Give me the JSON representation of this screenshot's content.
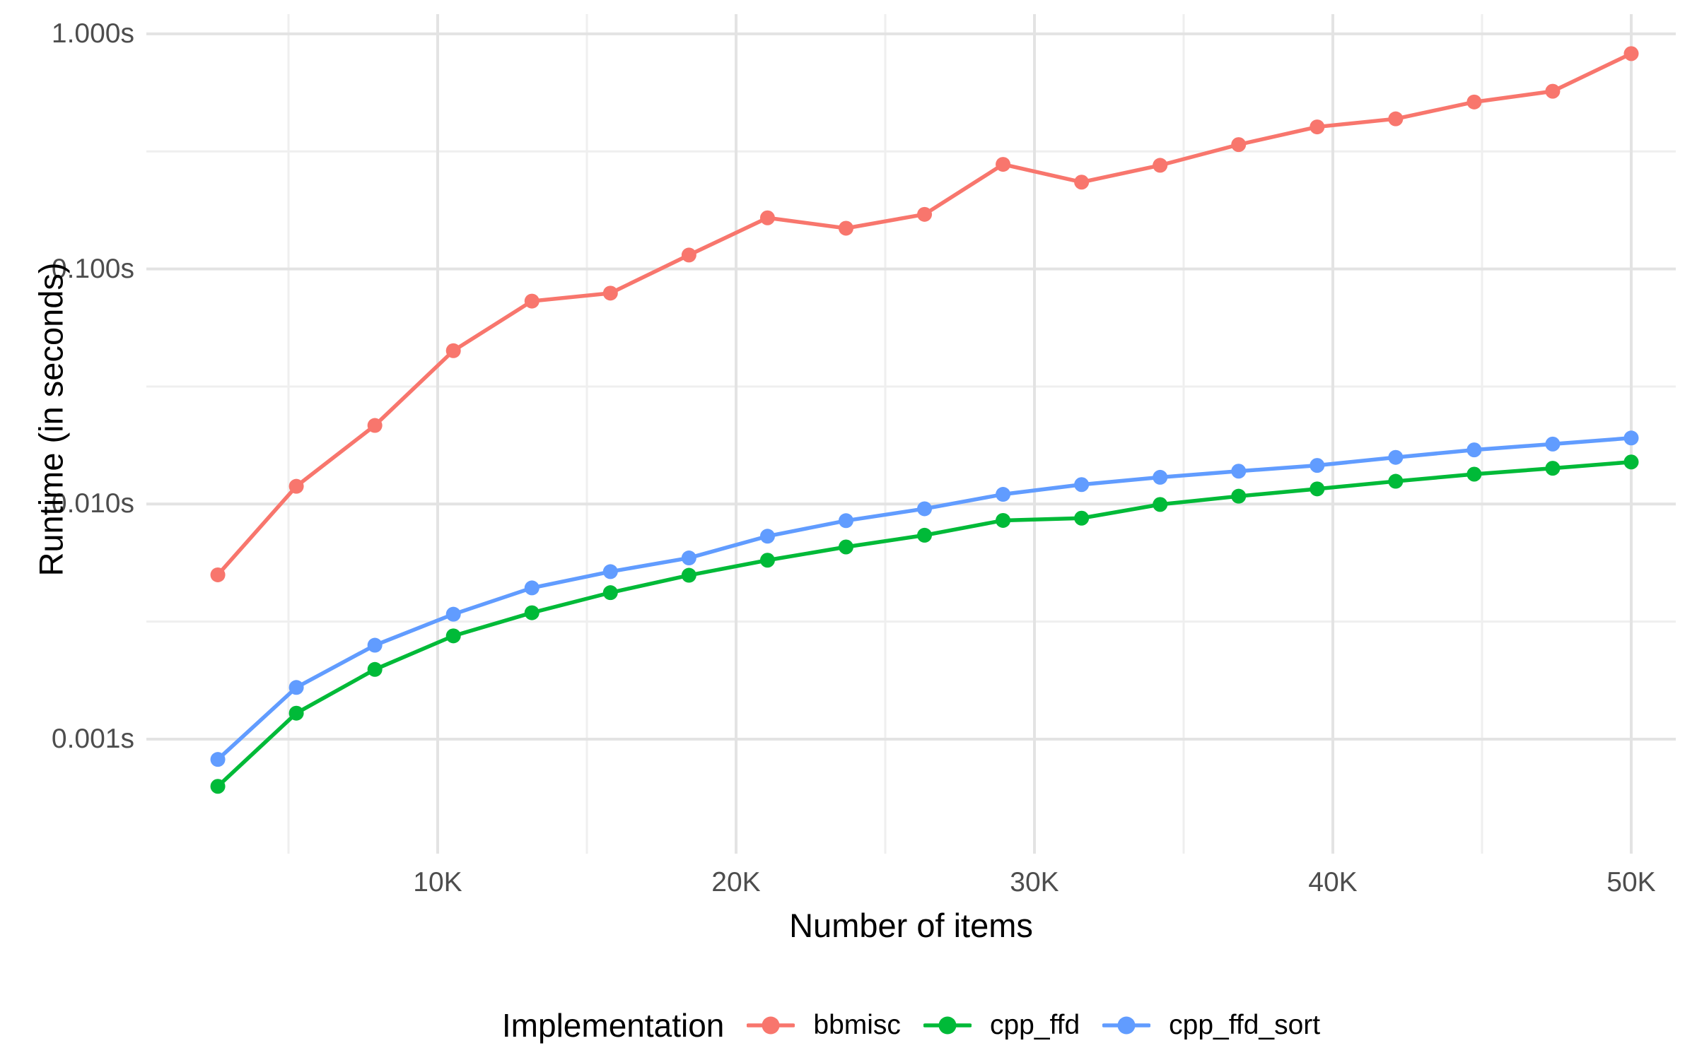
{
  "chart_data": {
    "type": "line",
    "title": "",
    "xlabel": "Number of items",
    "ylabel": "Runtime (in seconds)",
    "x_axis": {
      "scale": "linear",
      "range": [
        1100,
        51300
      ],
      "major_ticks": [
        {
          "value": 10000,
          "label": "10K"
        },
        {
          "value": 20000,
          "label": "20K"
        },
        {
          "value": 30000,
          "label": "30K"
        },
        {
          "value": 40000,
          "label": "40K"
        },
        {
          "value": 50000,
          "label": "50K"
        }
      ],
      "minor_ticks": [
        5000,
        15000,
        25000,
        35000,
        45000
      ]
    },
    "y_axis": {
      "scale": "log10",
      "range": [
        0.00045,
        1.25
      ],
      "major_ticks": [
        {
          "value": 1.0,
          "label": "1.000s"
        },
        {
          "value": 0.1,
          "label": "0.100s"
        },
        {
          "value": 0.01,
          "label": "0.010s"
        },
        {
          "value": 0.001,
          "label": "0.001s"
        }
      ],
      "minor_ticks": [
        0.3162,
        0.03162,
        0.003162
      ]
    },
    "grid": true,
    "x": [
      2632,
      5263,
      7895,
      10526,
      13158,
      15789,
      18421,
      21053,
      23684,
      26316,
      28947,
      31579,
      34211,
      36842,
      39474,
      42105,
      44737,
      47368,
      50000
    ],
    "series": [
      {
        "name": "bbmisc",
        "color": "#F8766D",
        "values": [
          0.005,
          0.0119,
          0.0216,
          0.0449,
          0.073,
          0.0789,
          0.1146,
          0.165,
          0.149,
          0.1707,
          0.2785,
          0.234,
          0.276,
          0.338,
          0.402,
          0.435,
          0.513,
          0.57,
          0.824
        ]
      },
      {
        "name": "cpp_ffd",
        "color": "#00BA38",
        "values": [
          0.00063,
          0.00129,
          0.00198,
          0.00275,
          0.00345,
          0.0042,
          0.00498,
          0.00577,
          0.00657,
          0.00737,
          0.00852,
          0.00871,
          0.00996,
          0.0108,
          0.0116,
          0.0125,
          0.0134,
          0.0142,
          0.0151
        ]
      },
      {
        "name": "cpp_ffd_sort",
        "color": "#619CFF",
        "values": [
          0.00082,
          0.00166,
          0.00251,
          0.0034,
          0.0044,
          0.00516,
          0.0059,
          0.0073,
          0.0085,
          0.00955,
          0.011,
          0.0121,
          0.013,
          0.0138,
          0.0146,
          0.0158,
          0.017,
          0.018,
          0.0191
        ]
      }
    ],
    "legend": {
      "title": "Implementation",
      "position": "bottom"
    }
  },
  "style": {
    "background": "#FFFFFF",
    "grid_major_color": "#E3E3E3",
    "grid_minor_color": "#EFEFEF",
    "tick_text_color": "#4D4D4D",
    "title_text_color": "#000000"
  }
}
